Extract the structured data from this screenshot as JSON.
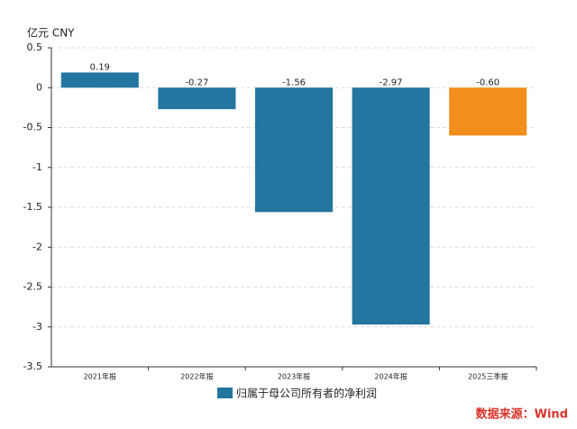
{
  "chart_data": {
    "type": "bar",
    "y_label": "亿元  CNY",
    "categories": [
      "2021年报",
      "2022年报",
      "2023年报",
      "2024年报",
      "2025三季报"
    ],
    "series": [
      {
        "name": "归属于母公司所有者的净利润",
        "color": "#22769f",
        "colors": [
          "#22769f",
          "#22769f",
          "#22769f",
          "#22769f",
          "#f28e1c"
        ],
        "values": [
          0.19,
          -0.27,
          -1.56,
          -2.97,
          -0.6
        ],
        "value_labels": [
          "0.19",
          "-0.27",
          "-1.56",
          "-2.97",
          "-0.60"
        ]
      }
    ],
    "ylim": [
      -3.5,
      0.5
    ],
    "yticks": [
      0.5,
      0,
      -0.5,
      -1,
      -1.5,
      -2,
      -2.5,
      -3,
      -3.5
    ],
    "grid": true,
    "legend": "bottom",
    "source": "数据来源：Wind"
  }
}
